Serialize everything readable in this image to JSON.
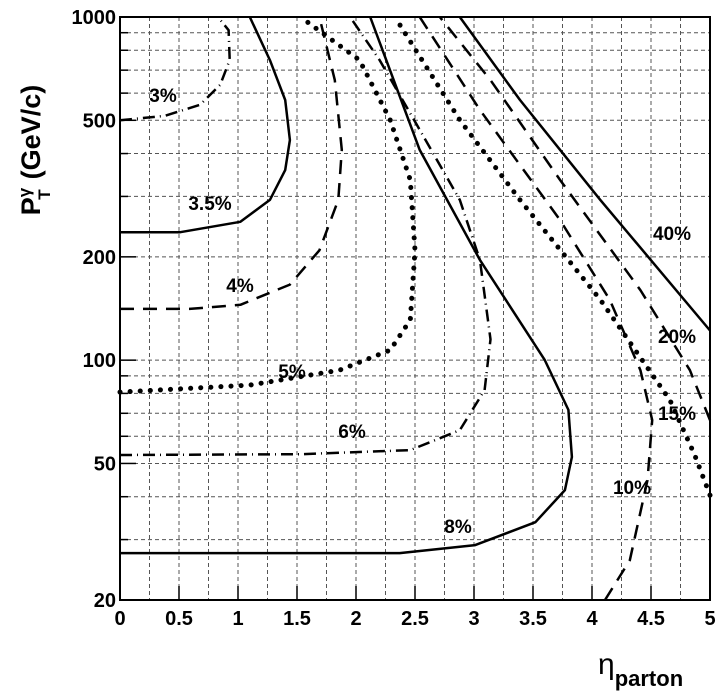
{
  "chart_data": {
    "type": "contour",
    "xlabel": {
      "main": "η",
      "sub": "parton"
    },
    "ylabel": {
      "main": "P",
      "sup": "γ",
      "sub": "T",
      "unit": "(GeV/c)"
    },
    "xlim": [
      0,
      5
    ],
    "ylim": [
      20,
      1000
    ],
    "ylog": true,
    "grid": true,
    "xticks": [
      0,
      0.5,
      1,
      1.5,
      2,
      2.5,
      3,
      3.5,
      4,
      4.5,
      5
    ],
    "xminorgrid": [
      0.25,
      0.75,
      1.25,
      1.75,
      2.25,
      2.75,
      3.25,
      3.75,
      4.25,
      4.75
    ],
    "yticks": [
      20,
      50,
      100,
      200,
      500,
      1000
    ],
    "yminorticks": [
      30,
      40,
      60,
      70,
      80,
      90,
      300,
      400,
      600,
      700,
      800,
      900
    ],
    "series": [
      {
        "name": "3%",
        "style": "dashdot",
        "x": [
          0,
          0.38,
          0.68,
          0.85,
          0.93,
          0.92,
          0.83
        ],
        "y": [
          500,
          515,
          555,
          635,
          750,
          915,
          1000
        ]
      },
      {
        "name": "3.5%",
        "style": "solid",
        "x": [
          0,
          0.51,
          1.02,
          1.27,
          1.4,
          1.44,
          1.4,
          1.27,
          1.1
        ],
        "y": [
          236,
          236,
          253,
          293,
          358,
          438,
          573,
          749,
          1000
        ]
      },
      {
        "name": "4%",
        "style": "dashed",
        "x": [
          0,
          0.59,
          1.02,
          1.44,
          1.69,
          1.85,
          1.88,
          1.82,
          1.69
        ],
        "y": [
          141,
          141,
          145,
          166,
          209,
          293,
          410,
          655,
          1000
        ]
      },
      {
        "name": "5%",
        "style": "dotted",
        "x": [
          0,
          1.1,
          1.86,
          2.29,
          2.46,
          2.5,
          2.46,
          2.29,
          2.03,
          1.53
        ],
        "y": [
          80.7,
          84.6,
          93.5,
          107,
          131,
          209,
          335,
          501,
          749,
          1000
        ]
      },
      {
        "name": "6%",
        "style": "dashdot",
        "x": [
          0,
          1.53,
          2.46,
          2.88,
          3.09,
          3.14,
          3.05,
          2.88,
          2.54,
          2.2,
          1.95
        ],
        "y": [
          52.9,
          53.2,
          54.7,
          62.5,
          81.8,
          115,
          196,
          293,
          469,
          749,
          1000
        ]
      },
      {
        "name": "8%",
        "style": "solid",
        "x": [
          0,
          2.37,
          3.01,
          3.52,
          3.77,
          3.83,
          3.8,
          3.6,
          3.05,
          2.54,
          2.12
        ],
        "y": [
          27.4,
          27.4,
          28.9,
          33.7,
          41.8,
          52.2,
          71.6,
          100,
          196,
          410,
          1000
        ]
      },
      {
        "name": "10%",
        "style": "dashed",
        "x": [
          4.11,
          4.32,
          4.47,
          4.51,
          4.41,
          4.15,
          3.73,
          3.05,
          2.54
        ],
        "y": [
          20,
          26.1,
          44.7,
          66.9,
          93.5,
          150,
          256,
          536,
          1000
        ]
      },
      {
        "name": "15%",
        "style": "dotted",
        "x": [
          5,
          4.87,
          4.66,
          4.07,
          3.39,
          2.88,
          2.33
        ],
        "y": [
          40.4,
          52.9,
          76.5,
          150,
          293,
          501,
          1000
        ]
      },
      {
        "name": "20%",
        "style": "dashed",
        "x": [
          5,
          4.83,
          4.41,
          3.73,
          3.14,
          2.71
        ],
        "y": [
          66.9,
          93.5,
          160,
          335,
          655,
          1000
        ]
      },
      {
        "name": "40%",
        "style": "solid",
        "x": [
          5,
          4.07,
          3.39,
          2.88
        ],
        "y": [
          122,
          293,
          573,
          1000
        ]
      }
    ]
  }
}
